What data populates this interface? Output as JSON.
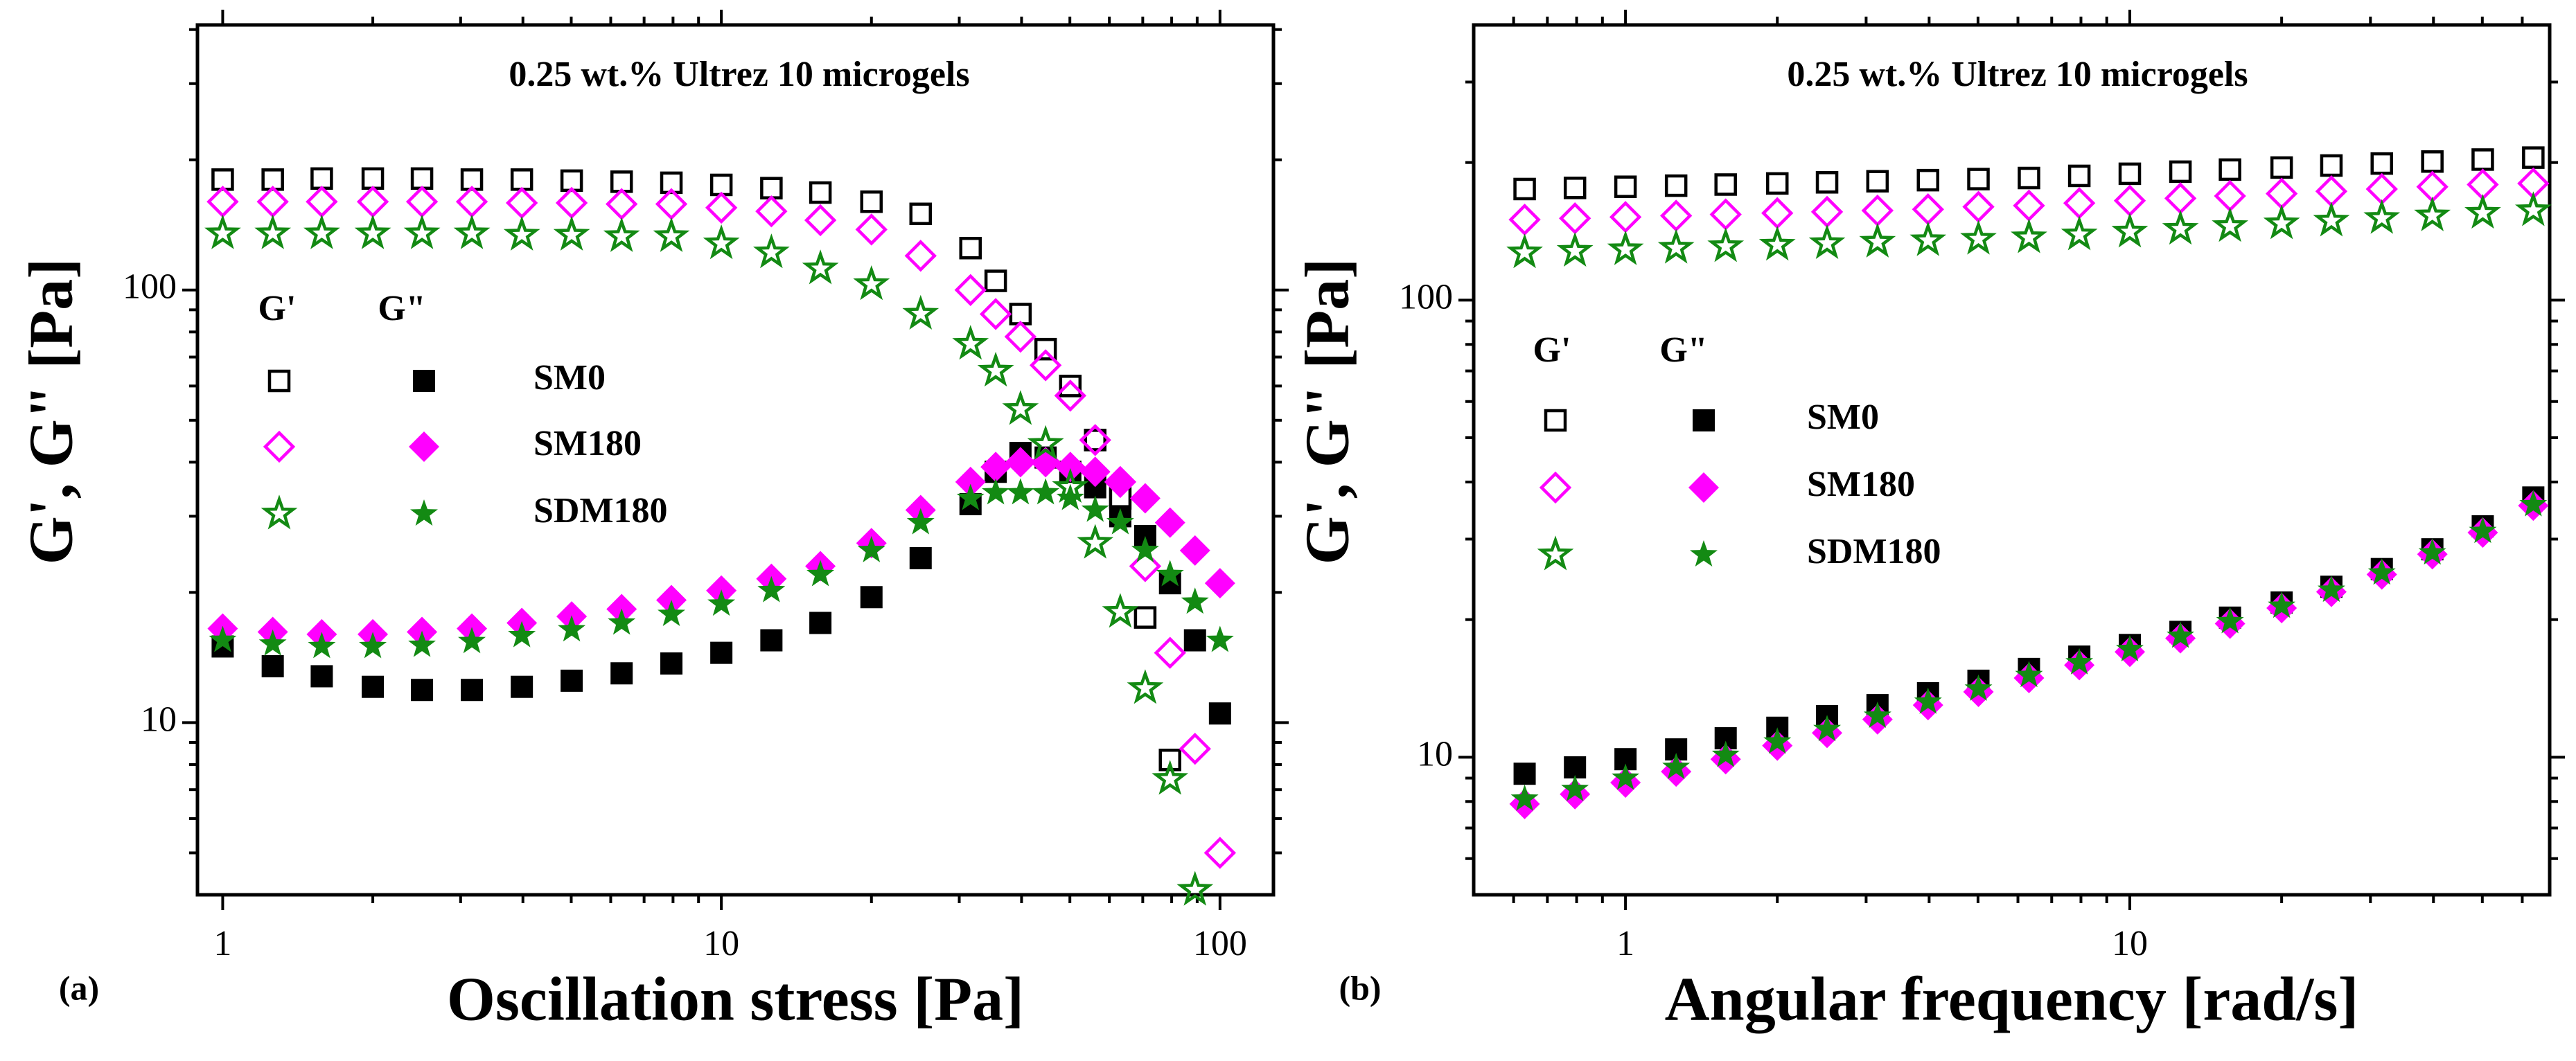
{
  "chart_data": [
    {
      "type": "scatter",
      "panel_label": "(a)",
      "annotation": "0.25 wt.% Ultrez 10 microgels",
      "x_label": "Oscillation stress [Pa]",
      "y_label": "G', G\" [Pa]",
      "log_x": true,
      "log_y": true,
      "xlim": [
        0.89,
        128
      ],
      "ylim": [
        4,
        410
      ],
      "xticks": [
        1,
        10,
        100
      ],
      "yticks": [
        10,
        100
      ],
      "xminorticks": [
        2,
        3,
        4,
        5,
        6,
        7,
        8,
        9,
        20,
        30,
        40,
        50,
        60,
        70,
        80,
        90
      ],
      "yminorticks": [
        5,
        6,
        7,
        8,
        9,
        20,
        30,
        40,
        50,
        60,
        70,
        80,
        90,
        200,
        300,
        400
      ],
      "legend_columns": [
        "G'",
        "G\""
      ],
      "x": [
        1,
        1.26,
        1.58,
        2,
        2.51,
        3.16,
        3.98,
        5.01,
        6.31,
        7.94,
        10,
        12.6,
        15.8,
        20,
        25.1,
        31.6,
        35.5,
        39.8,
        44.7,
        50.1,
        56.2,
        63.1,
        70.8,
        79.4,
        89.1,
        100
      ],
      "series": [
        {
          "name": "SM0",
          "color": "#000000",
          "marker": "square",
          "storage": [
            180,
            180,
            181,
            181,
            181,
            180,
            180,
            179,
            178,
            177,
            175,
            172,
            168,
            160,
            150,
            125,
            105,
            88,
            73,
            60,
            45,
            33,
            17.5,
            8.2,
            null,
            null
          ],
          "loss": [
            15,
            13.5,
            12.8,
            12.1,
            11.9,
            11.9,
            12.1,
            12.5,
            13,
            13.7,
            14.5,
            15.5,
            17,
            19.5,
            24,
            32,
            38,
            42,
            41,
            38,
            35,
            30,
            27,
            21,
            15.5,
            10.5
          ]
        },
        {
          "name": "SM180",
          "color": "#ff00ff",
          "marker": "diamond",
          "storage": [
            160,
            160,
            160,
            160,
            160,
            160,
            159,
            159,
            158,
            158,
            155,
            152,
            145,
            138,
            120,
            100,
            88,
            78,
            67,
            57,
            45,
            36,
            23,
            14.5,
            8.7,
            5
          ],
          "loss": [
            16.5,
            16.2,
            16,
            16,
            16.2,
            16.5,
            17,
            17.6,
            18.3,
            19.2,
            20.2,
            21.5,
            23,
            26,
            31,
            36,
            39,
            40,
            40,
            39,
            38,
            36,
            33,
            29,
            25,
            21
          ]
        },
        {
          "name": "SDM180",
          "color": "#138a13",
          "marker": "star",
          "storage": [
            135,
            135,
            135,
            135,
            135,
            135,
            134,
            134,
            133,
            133,
            128,
            122,
            112,
            103,
            88,
            75,
            65,
            53,
            44,
            35,
            26,
            18,
            12,
            7.4,
            4.1,
            null
          ],
          "loss": [
            15.5,
            15.2,
            15,
            15,
            15.1,
            15.4,
            15.9,
            16.4,
            17,
            17.8,
            18.8,
            20.2,
            22,
            25,
            29,
            33,
            34,
            34,
            34,
            33,
            31,
            29,
            25,
            22,
            19,
            15.5
          ]
        }
      ]
    },
    {
      "type": "scatter",
      "panel_label": "(b)",
      "annotation": "0.25 wt.% Ultrez 10 microgels",
      "x_label": "Angular frequency [rad/s]",
      "y_label": "G', G\" [Pa]",
      "log_x": true,
      "log_y": true,
      "xlim": [
        0.5,
        68
      ],
      "ylim": [
        5,
        400
      ],
      "xticks": [
        1,
        10
      ],
      "yticks": [
        10,
        100
      ],
      "xminorticks": [
        0.6,
        0.7,
        0.8,
        0.9,
        2,
        3,
        4,
        5,
        6,
        7,
        8,
        9,
        20,
        30,
        40,
        50,
        60
      ],
      "yminorticks": [
        6,
        7,
        8,
        9,
        20,
        30,
        40,
        50,
        60,
        70,
        80,
        90,
        200,
        300
      ],
      "legend_columns": [
        "G'",
        "G\""
      ],
      "x": [
        0.631,
        0.794,
        1,
        1.26,
        1.58,
        2,
        2.51,
        3.16,
        3.98,
        5.01,
        6.31,
        7.94,
        10,
        12.6,
        15.8,
        20,
        25.1,
        31.6,
        39.8,
        50.1,
        63.1
      ],
      "series": [
        {
          "name": "SM0",
          "color": "#000000",
          "marker": "square",
          "storage": [
            175,
            176,
            177,
            178,
            179,
            180,
            181,
            182,
            183,
            184,
            185,
            187,
            189,
            191,
            193,
            195,
            197,
            199,
            201,
            203,
            205
          ],
          "loss": [
            9.2,
            9.5,
            9.9,
            10.4,
            11,
            11.6,
            12.3,
            13,
            13.8,
            14.7,
            15.6,
            16.6,
            17.6,
            18.8,
            20.2,
            21.8,
            23.6,
            25.8,
            28.5,
            32,
            37
          ]
        },
        {
          "name": "SM180",
          "color": "#ff00ff",
          "marker": "diamond",
          "storage": [
            150,
            151,
            152,
            153,
            154,
            155,
            156,
            157,
            158,
            160,
            161,
            163,
            165,
            167,
            169,
            171,
            173,
            175,
            177,
            179,
            180
          ],
          "loss": [
            7.9,
            8.3,
            8.8,
            9.3,
            9.9,
            10.6,
            11.3,
            12.1,
            13,
            13.9,
            14.9,
            15.9,
            17,
            18.2,
            19.6,
            21.2,
            23,
            25.1,
            27.8,
            31,
            35.5
          ]
        },
        {
          "name": "SDM180",
          "color": "#138a13",
          "marker": "star",
          "storage": [
            127,
            128,
            129,
            130,
            131,
            132,
            133,
            134,
            135,
            136,
            137,
            139,
            141,
            143,
            145,
            147,
            149,
            151,
            153,
            155,
            157
          ],
          "loss": [
            8.1,
            8.5,
            9,
            9.5,
            10.1,
            10.8,
            11.5,
            12.3,
            13.2,
            14.1,
            15.1,
            16.1,
            17.2,
            18.4,
            19.8,
            21.4,
            23.2,
            25.3,
            28,
            31.2,
            35.7
          ]
        }
      ]
    }
  ]
}
